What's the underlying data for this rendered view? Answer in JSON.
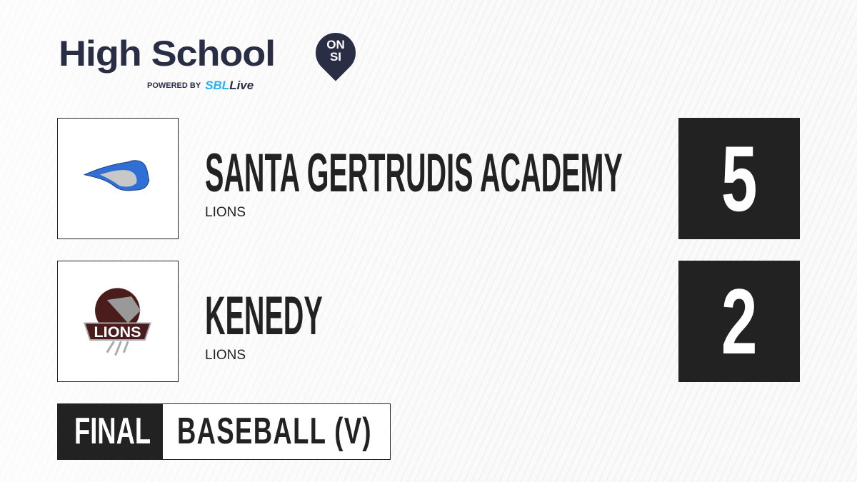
{
  "brand": {
    "title": "High School",
    "badge_top": "ON",
    "badge_bottom": "SI",
    "powered_by": "POWERED BY",
    "partner_prefix": "SBL",
    "partner_suffix": "ive",
    "partner_accent": "#2aaef0",
    "color": "#2a2e45"
  },
  "teams": [
    {
      "name": "SANTA GERTRUDIS ACADEMY",
      "mascot": "LIONS",
      "score": "5",
      "logo": "blue-lion-head-logo"
    },
    {
      "name": "KENEDY",
      "mascot": "LIONS",
      "score": "2",
      "logo": "maroon-lions-logo",
      "logo_text": "LIONS"
    }
  ],
  "status": "FINAL",
  "sport": "BASEBALL (V)"
}
